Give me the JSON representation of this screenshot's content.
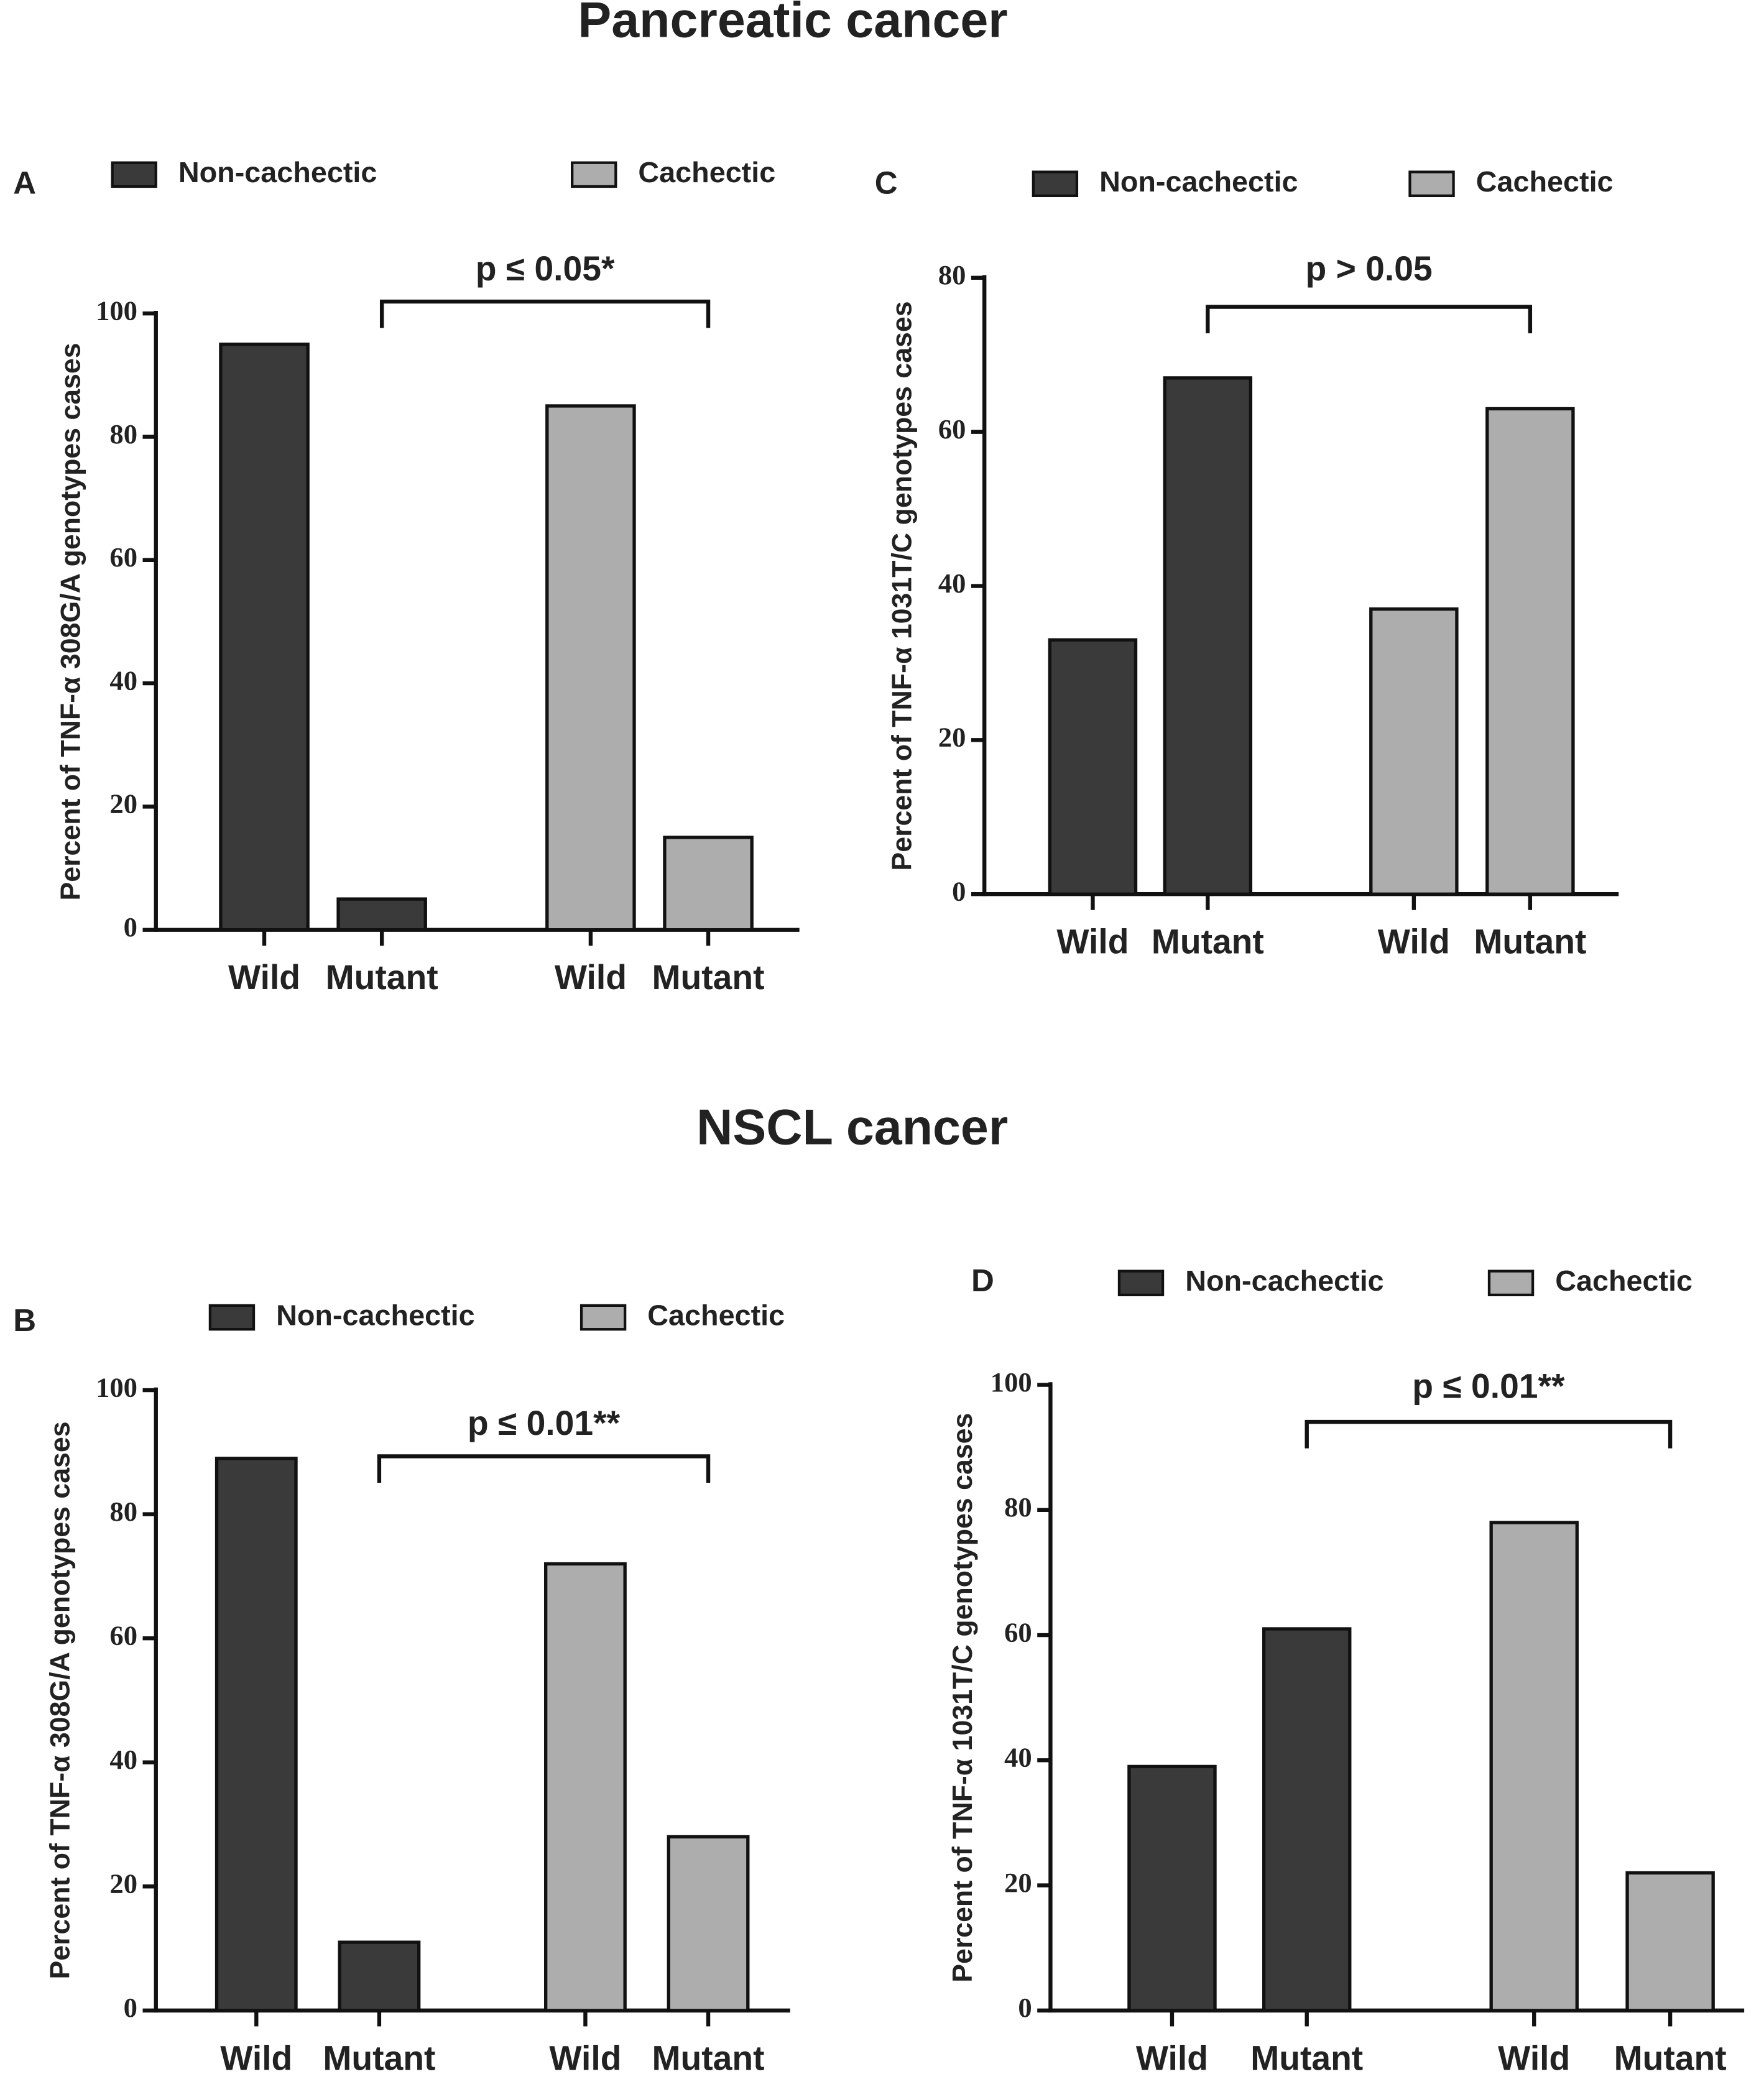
{
  "titles": [
    "Pancreatic cancer",
    "NSCL cancer"
  ],
  "chart_data": [
    {
      "type": "bar",
      "panel": "A",
      "y_label": "Percent of TNF-α 308G/A  genotypes cases",
      "annotation": "p ≤ 0.05*",
      "categories": [
        "Wild",
        "Mutant"
      ],
      "series": [
        {
          "name": "Non-cachectic",
          "color": "#3a3a3a",
          "values": [
            95,
            5
          ]
        },
        {
          "name": "Cachectic",
          "color": "#adadad",
          "values": [
            85,
            15
          ]
        }
      ],
      "ylim": [
        0,
        100
      ],
      "yticks": [
        0,
        20,
        40,
        60,
        80,
        100
      ]
    },
    {
      "type": "bar",
      "panel": "C",
      "y_label": "Percent of TNF-α 1031T/C genotypes cases",
      "annotation": "p > 0.05",
      "categories": [
        "Wild",
        "Mutant"
      ],
      "series": [
        {
          "name": "Non-cachectic",
          "color": "#3a3a3a",
          "values": [
            33,
            67
          ]
        },
        {
          "name": "Cachectic",
          "color": "#adadad",
          "values": [
            37,
            63
          ]
        }
      ],
      "ylim": [
        0,
        80
      ],
      "yticks": [
        0,
        20,
        40,
        60,
        80
      ]
    },
    {
      "type": "bar",
      "panel": "B",
      "y_label": "Percent of TNF-α 308G/A genotypes cases",
      "annotation": "p ≤ 0.01**",
      "categories": [
        "Wild",
        "Mutant"
      ],
      "series": [
        {
          "name": "Non-cachectic",
          "color": "#3a3a3a",
          "values": [
            89,
            11
          ]
        },
        {
          "name": "Cachectic",
          "color": "#adadad",
          "values": [
            72,
            28
          ]
        }
      ],
      "ylim": [
        0,
        100
      ],
      "yticks": [
        0,
        20,
        40,
        60,
        80,
        100
      ]
    },
    {
      "type": "bar",
      "panel": "D",
      "y_label": "Percent of TNF-α 1031T/C genotypes cases",
      "annotation": "p ≤ 0.01**",
      "categories": [
        "Wild",
        "Mutant"
      ],
      "series": [
        {
          "name": "Non-cachectic",
          "color": "#3a3a3a",
          "values": [
            39,
            61
          ]
        },
        {
          "name": "Cachectic",
          "color": "#adadad",
          "values": [
            78,
            22
          ]
        }
      ],
      "ylim": [
        0,
        100
      ],
      "yticks": [
        0,
        20,
        40,
        60,
        80,
        100
      ]
    }
  ]
}
